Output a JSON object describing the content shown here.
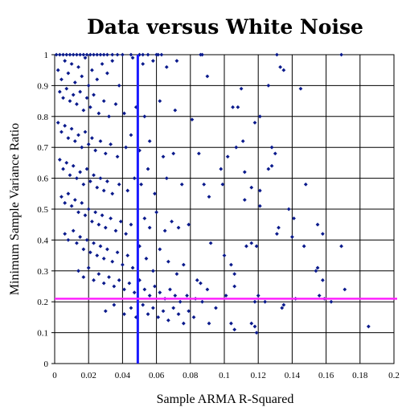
{
  "chart_data": {
    "type": "scatter",
    "title": "Data versus White Noise",
    "xlabel": "Sample ARMA R-Squared",
    "ylabel": "Minimum Sample Variance Ratio",
    "xlim": [
      0,
      0.2
    ],
    "ylim": [
      0,
      1
    ],
    "xticks": [
      "0",
      "0.02",
      "0.04",
      "0.06",
      "0.08",
      "0.1",
      "0.12",
      "0.14",
      "0.16",
      "0.18",
      "0.2"
    ],
    "yticks": [
      "0",
      "0.1",
      "0.2",
      "0.3",
      "0.4",
      "0.5",
      "0.6",
      "0.7",
      "0.8",
      "0.9",
      "1"
    ],
    "grid": true,
    "point_color": "#0a1a8c",
    "reference_lines": [
      {
        "orientation": "vertical",
        "x": 0.049,
        "color": "#1a1aff"
      },
      {
        "orientation": "horizontal",
        "y": 0.21,
        "color": "#ff22ff"
      }
    ],
    "points": [
      [
        0.001,
        1
      ],
      [
        0.003,
        1
      ],
      [
        0.005,
        1
      ],
      [
        0.007,
        1
      ],
      [
        0.009,
        1
      ],
      [
        0.011,
        1
      ],
      [
        0.013,
        1
      ],
      [
        0.015,
        1
      ],
      [
        0.017,
        1
      ],
      [
        0.019,
        1
      ],
      [
        0.021,
        1
      ],
      [
        0.023,
        1
      ],
      [
        0.025,
        1
      ],
      [
        0.027,
        1
      ],
      [
        0.029,
        1
      ],
      [
        0.031,
        1
      ],
      [
        0.034,
        1
      ],
      [
        0.037,
        1
      ],
      [
        0.04,
        1
      ],
      [
        0.045,
        1
      ],
      [
        0.05,
        1
      ],
      [
        0.052,
        1
      ],
      [
        0.055,
        1
      ],
      [
        0.06,
        1
      ],
      [
        0.061,
        1
      ],
      [
        0.063,
        1
      ],
      [
        0.086,
        1
      ],
      [
        0.087,
        1
      ],
      [
        0.131,
        1
      ],
      [
        0.169,
        1
      ],
      [
        0.002,
        0.95
      ],
      [
        0.004,
        0.92
      ],
      [
        0.006,
        0.98
      ],
      [
        0.008,
        0.94
      ],
      [
        0.01,
        0.97
      ],
      [
        0.012,
        0.91
      ],
      [
        0.014,
        0.96
      ],
      [
        0.016,
        0.93
      ],
      [
        0.018,
        0.99
      ],
      [
        0.02,
        0.9
      ],
      [
        0.022,
        0.95
      ],
      [
        0.025,
        0.92
      ],
      [
        0.028,
        0.97
      ],
      [
        0.031,
        0.94
      ],
      [
        0.034,
        0.98
      ],
      [
        0.038,
        0.9
      ],
      [
        0.046,
        0.99
      ],
      [
        0.052,
        0.97
      ],
      [
        0.058,
        0.98
      ],
      [
        0.066,
        0.96
      ],
      [
        0.072,
        0.98
      ],
      [
        0.09,
        0.93
      ],
      [
        0.11,
        0.89
      ],
      [
        0.126,
        0.9
      ],
      [
        0.133,
        0.96
      ],
      [
        0.135,
        0.95
      ],
      [
        0.145,
        0.89
      ],
      [
        0.003,
        0.88
      ],
      [
        0.005,
        0.86
      ],
      [
        0.007,
        0.89
      ],
      [
        0.009,
        0.85
      ],
      [
        0.011,
        0.87
      ],
      [
        0.013,
        0.84
      ],
      [
        0.015,
        0.88
      ],
      [
        0.017,
        0.82
      ],
      [
        0.019,
        0.86
      ],
      [
        0.021,
        0.83
      ],
      [
        0.023,
        0.87
      ],
      [
        0.026,
        0.81
      ],
      [
        0.029,
        0.85
      ],
      [
        0.032,
        0.8
      ],
      [
        0.036,
        0.84
      ],
      [
        0.041,
        0.81
      ],
      [
        0.048,
        0.83
      ],
      [
        0.053,
        0.8
      ],
      [
        0.062,
        0.85
      ],
      [
        0.071,
        0.82
      ],
      [
        0.081,
        0.79
      ],
      [
        0.105,
        0.83
      ],
      [
        0.108,
        0.83
      ],
      [
        0.118,
        0.78
      ],
      [
        0.121,
        0.8
      ],
      [
        0.002,
        0.78
      ],
      [
        0.004,
        0.75
      ],
      [
        0.006,
        0.77
      ],
      [
        0.008,
        0.73
      ],
      [
        0.01,
        0.76
      ],
      [
        0.012,
        0.72
      ],
      [
        0.014,
        0.74
      ],
      [
        0.016,
        0.7
      ],
      [
        0.018,
        0.75
      ],
      [
        0.02,
        0.71
      ],
      [
        0.022,
        0.73
      ],
      [
        0.024,
        0.69
      ],
      [
        0.027,
        0.72
      ],
      [
        0.03,
        0.68
      ],
      [
        0.033,
        0.71
      ],
      [
        0.037,
        0.67
      ],
      [
        0.042,
        0.7
      ],
      [
        0.045,
        0.74
      ],
      [
        0.05,
        0.69
      ],
      [
        0.056,
        0.72
      ],
      [
        0.064,
        0.67
      ],
      [
        0.07,
        0.68
      ],
      [
        0.085,
        0.68
      ],
      [
        0.102,
        0.67
      ],
      [
        0.107,
        0.7
      ],
      [
        0.111,
        0.72
      ],
      [
        0.128,
        0.7
      ],
      [
        0.13,
        0.68
      ],
      [
        0.003,
        0.66
      ],
      [
        0.005,
        0.63
      ],
      [
        0.007,
        0.65
      ],
      [
        0.009,
        0.61
      ],
      [
        0.011,
        0.64
      ],
      [
        0.013,
        0.6
      ],
      [
        0.015,
        0.62
      ],
      [
        0.017,
        0.58
      ],
      [
        0.019,
        0.63
      ],
      [
        0.021,
        0.59
      ],
      [
        0.023,
        0.61
      ],
      [
        0.025,
        0.57
      ],
      [
        0.027,
        0.6
      ],
      [
        0.029,
        0.56
      ],
      [
        0.031,
        0.59
      ],
      [
        0.034,
        0.55
      ],
      [
        0.038,
        0.58
      ],
      [
        0.043,
        0.56
      ],
      [
        0.047,
        0.6
      ],
      [
        0.051,
        0.58
      ],
      [
        0.055,
        0.63
      ],
      [
        0.059,
        0.55
      ],
      [
        0.066,
        0.6
      ],
      [
        0.075,
        0.58
      ],
      [
        0.088,
        0.58
      ],
      [
        0.098,
        0.63
      ],
      [
        0.112,
        0.62
      ],
      [
        0.116,
        0.57
      ],
      [
        0.121,
        0.56
      ],
      [
        0.126,
        0.63
      ],
      [
        0.128,
        0.64
      ],
      [
        0.148,
        0.58
      ],
      [
        0.004,
        0.54
      ],
      [
        0.006,
        0.52
      ],
      [
        0.008,
        0.55
      ],
      [
        0.01,
        0.51
      ],
      [
        0.012,
        0.53
      ],
      [
        0.014,
        0.49
      ],
      [
        0.016,
        0.52
      ],
      [
        0.018,
        0.48
      ],
      [
        0.02,
        0.5
      ],
      [
        0.022,
        0.46
      ],
      [
        0.024,
        0.49
      ],
      [
        0.026,
        0.45
      ],
      [
        0.028,
        0.48
      ],
      [
        0.03,
        0.44
      ],
      [
        0.033,
        0.47
      ],
      [
        0.036,
        0.43
      ],
      [
        0.039,
        0.46
      ],
      [
        0.042,
        0.42
      ],
      [
        0.045,
        0.45
      ],
      [
        0.049,
        0.5
      ],
      [
        0.053,
        0.47
      ],
      [
        0.056,
        0.44
      ],
      [
        0.06,
        0.49
      ],
      [
        0.065,
        0.43
      ],
      [
        0.069,
        0.46
      ],
      [
        0.073,
        0.44
      ],
      [
        0.079,
        0.45
      ],
      [
        0.091,
        0.54
      ],
      [
        0.099,
        0.58
      ],
      [
        0.112,
        0.53
      ],
      [
        0.121,
        0.51
      ],
      [
        0.132,
        0.44
      ],
      [
        0.138,
        0.5
      ],
      [
        0.141,
        0.47
      ],
      [
        0.155,
        0.45
      ],
      [
        0.158,
        0.42
      ],
      [
        0.006,
        0.42
      ],
      [
        0.008,
        0.4
      ],
      [
        0.011,
        0.43
      ],
      [
        0.013,
        0.39
      ],
      [
        0.015,
        0.41
      ],
      [
        0.017,
        0.37
      ],
      [
        0.019,
        0.4
      ],
      [
        0.021,
        0.36
      ],
      [
        0.023,
        0.39
      ],
      [
        0.025,
        0.35
      ],
      [
        0.027,
        0.38
      ],
      [
        0.029,
        0.34
      ],
      [
        0.031,
        0.37
      ],
      [
        0.034,
        0.33
      ],
      [
        0.037,
        0.36
      ],
      [
        0.04,
        0.32
      ],
      [
        0.043,
        0.35
      ],
      [
        0.046,
        0.31
      ],
      [
        0.05,
        0.38
      ],
      [
        0.054,
        0.34
      ],
      [
        0.058,
        0.3
      ],
      [
        0.062,
        0.37
      ],
      [
        0.067,
        0.33
      ],
      [
        0.072,
        0.29
      ],
      [
        0.076,
        0.32
      ],
      [
        0.084,
        0.27
      ],
      [
        0.092,
        0.39
      ],
      [
        0.1,
        0.35
      ],
      [
        0.104,
        0.32
      ],
      [
        0.106,
        0.29
      ],
      [
        0.113,
        0.38
      ],
      [
        0.116,
        0.39
      ],
      [
        0.119,
        0.38
      ],
      [
        0.131,
        0.42
      ],
      [
        0.14,
        0.41
      ],
      [
        0.147,
        0.38
      ],
      [
        0.154,
        0.3
      ],
      [
        0.155,
        0.31
      ],
      [
        0.158,
        0.27
      ],
      [
        0.169,
        0.38
      ],
      [
        0.014,
        0.3
      ],
      [
        0.017,
        0.28
      ],
      [
        0.02,
        0.31
      ],
      [
        0.023,
        0.27
      ],
      [
        0.026,
        0.29
      ],
      [
        0.029,
        0.26
      ],
      [
        0.032,
        0.28
      ],
      [
        0.035,
        0.25
      ],
      [
        0.038,
        0.27
      ],
      [
        0.041,
        0.24
      ],
      [
        0.044,
        0.26
      ],
      [
        0.047,
        0.23
      ],
      [
        0.05,
        0.27
      ],
      [
        0.053,
        0.24
      ],
      [
        0.056,
        0.22
      ],
      [
        0.059,
        0.25
      ],
      [
        0.062,
        0.23
      ],
      [
        0.065,
        0.21
      ],
      [
        0.068,
        0.24
      ],
      [
        0.071,
        0.22
      ],
      [
        0.074,
        0.2
      ],
      [
        0.078,
        0.22
      ],
      [
        0.083,
        0.21
      ],
      [
        0.086,
        0.26
      ],
      [
        0.09,
        0.24
      ],
      [
        0.101,
        0.22
      ],
      [
        0.106,
        0.25
      ],
      [
        0.118,
        0.2
      ],
      [
        0.12,
        0.22
      ],
      [
        0.124,
        0.2
      ],
      [
        0.135,
        0.19
      ],
      [
        0.142,
        0.21
      ],
      [
        0.156,
        0.22
      ],
      [
        0.159,
        0.21
      ],
      [
        0.163,
        0.2
      ],
      [
        0.171,
        0.24
      ],
      [
        0.03,
        0.17
      ],
      [
        0.035,
        0.19
      ],
      [
        0.041,
        0.16
      ],
      [
        0.045,
        0.18
      ],
      [
        0.048,
        0.15
      ],
      [
        0.052,
        0.19
      ],
      [
        0.055,
        0.16
      ],
      [
        0.058,
        0.18
      ],
      [
        0.061,
        0.15
      ],
      [
        0.064,
        0.17
      ],
      [
        0.067,
        0.14
      ],
      [
        0.07,
        0.18
      ],
      [
        0.073,
        0.16
      ],
      [
        0.076,
        0.13
      ],
      [
        0.079,
        0.17
      ],
      [
        0.082,
        0.15
      ],
      [
        0.087,
        0.2
      ],
      [
        0.091,
        0.13
      ],
      [
        0.095,
        0.18
      ],
      [
        0.104,
        0.13
      ],
      [
        0.106,
        0.11
      ],
      [
        0.116,
        0.13
      ],
      [
        0.118,
        0.12
      ],
      [
        0.119,
        0.1
      ],
      [
        0.134,
        0.18
      ],
      [
        0.185,
        0.12
      ]
    ]
  }
}
